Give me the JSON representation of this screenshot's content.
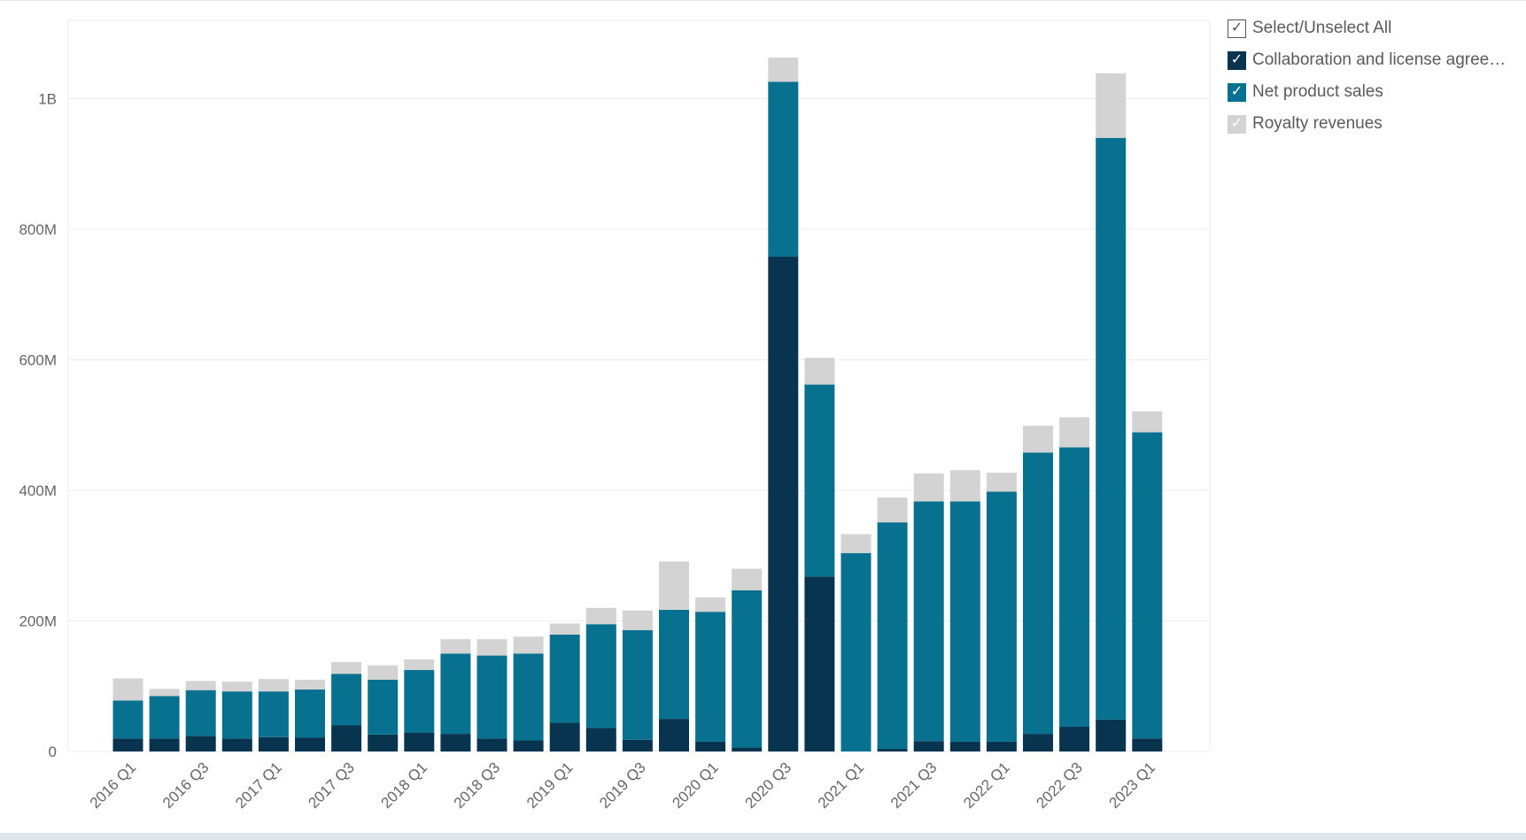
{
  "legend": {
    "select_all_label": "Select/Unselect All",
    "check_glyph": "✓"
  },
  "chart_data": {
    "type": "bar",
    "stacked": true,
    "title": "",
    "xlabel": "",
    "ylabel": "",
    "ylim": [
      0,
      1120000000
    ],
    "y_ticks": [
      {
        "value": 0,
        "label": "0"
      },
      {
        "value": 200000000,
        "label": "200M"
      },
      {
        "value": 400000000,
        "label": "400M"
      },
      {
        "value": 600000000,
        "label": "600M"
      },
      {
        "value": 800000000,
        "label": "800M"
      },
      {
        "value": 1000000000,
        "label": "1B"
      }
    ],
    "grid": true,
    "legend_position": "top-right",
    "categories": [
      "2016 Q1",
      "2016 Q2",
      "2016 Q3",
      "2016 Q4",
      "2017 Q1",
      "2017 Q2",
      "2017 Q3",
      "2017 Q4",
      "2018 Q1",
      "2018 Q2",
      "2018 Q3",
      "2018 Q4",
      "2019 Q1",
      "2019 Q2",
      "2019 Q3",
      "2019 Q4",
      "2020 Q1",
      "2020 Q2",
      "2020 Q3",
      "2020 Q4",
      "2021 Q1",
      "2021 Q2",
      "2021 Q3",
      "2021 Q4",
      "2022 Q1",
      "2022 Q2",
      "2022 Q3",
      "2022 Q4",
      "2023 Q1"
    ],
    "x_tick_labels": [
      "2016 Q1",
      "",
      "2016 Q3",
      "",
      "2017 Q1",
      "",
      "2017 Q3",
      "",
      "2018 Q1",
      "",
      "2018 Q3",
      "",
      "2019 Q1",
      "",
      "2019 Q3",
      "",
      "2020 Q1",
      "",
      "2020 Q3",
      "",
      "2021 Q1",
      "",
      "2021 Q3",
      "",
      "2022 Q1",
      "",
      "2022 Q3",
      "",
      "2023 Q1"
    ],
    "series": [
      {
        "name": "Collaboration and license agreem…",
        "color": "#08344f",
        "values": [
          20000000,
          20000000,
          24000000,
          20000000,
          22000000,
          21000000,
          40000000,
          26000000,
          29000000,
          27000000,
          20000000,
          17000000,
          44000000,
          36000000,
          18000000,
          50000000,
          15000000,
          6000000,
          758000000,
          268000000,
          0,
          4000000,
          16000000,
          15000000,
          15000000,
          27000000,
          38000000,
          49000000,
          20000000
        ]
      },
      {
        "name": "Net product sales",
        "color": "#08718f",
        "values": [
          58000000,
          65000000,
          70000000,
          72000000,
          70000000,
          74000000,
          79000000,
          84000000,
          96000000,
          123000000,
          127000000,
          133000000,
          135000000,
          159000000,
          168000000,
          167000000,
          199000000,
          241000000,
          268000000,
          294000000,
          304000000,
          347000000,
          367000000,
          368000000,
          383000000,
          431000000,
          428000000,
          891000000,
          469000000
        ]
      },
      {
        "name": "Royalty revenues",
        "color": "#d3d3d3",
        "values": [
          34000000,
          11000000,
          14000000,
          15000000,
          19000000,
          15000000,
          18000000,
          22000000,
          16000000,
          22000000,
          25000000,
          26000000,
          17000000,
          25000000,
          30000000,
          74000000,
          22000000,
          33000000,
          37000000,
          41000000,
          29000000,
          38000000,
          43000000,
          48000000,
          29000000,
          41000000,
          46000000,
          99000000,
          32000000
        ]
      }
    ]
  }
}
